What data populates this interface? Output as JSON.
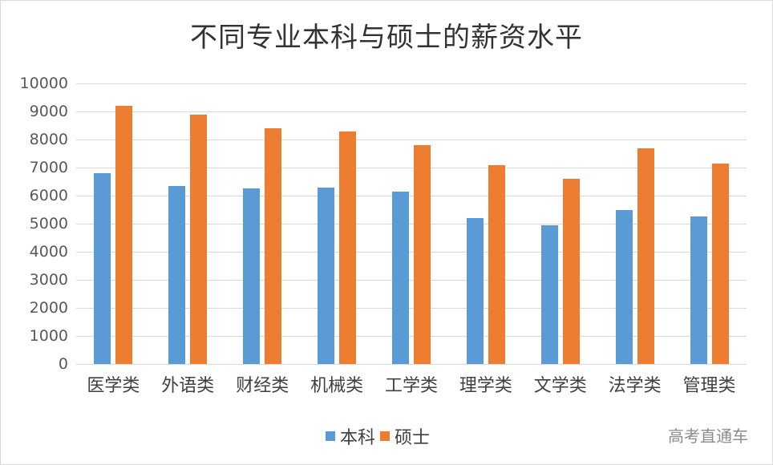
{
  "chart_data": {
    "type": "bar",
    "title": "不同专业本科与硕士的薪资水平",
    "xlabel": "",
    "ylabel": "",
    "categories": [
      "医学类",
      "外语类",
      "财经类",
      "机械类",
      "工学类",
      "理学类",
      "文学类",
      "法学类",
      "管理类"
    ],
    "series": [
      {
        "name": "本科",
        "color": "#5b9bd5",
        "values": [
          6800,
          6350,
          6250,
          6300,
          6150,
          5200,
          4950,
          5500,
          5250
        ]
      },
      {
        "name": "硕士",
        "color": "#ed7d31",
        "values": [
          9200,
          8900,
          8400,
          8300,
          7800,
          7100,
          6600,
          7700,
          7150
        ]
      }
    ],
    "ylim": [
      0,
      10000
    ],
    "yticks": [
      0,
      1000,
      2000,
      3000,
      4000,
      5000,
      6000,
      7000,
      8000,
      9000,
      10000
    ],
    "grid": true,
    "legend_position": "bottom"
  },
  "legend": {
    "items": [
      {
        "label": "本科",
        "color": "#5b9bd5"
      },
      {
        "label": "硕士",
        "color": "#ed7d31"
      }
    ]
  },
  "watermark": "高考直通车"
}
